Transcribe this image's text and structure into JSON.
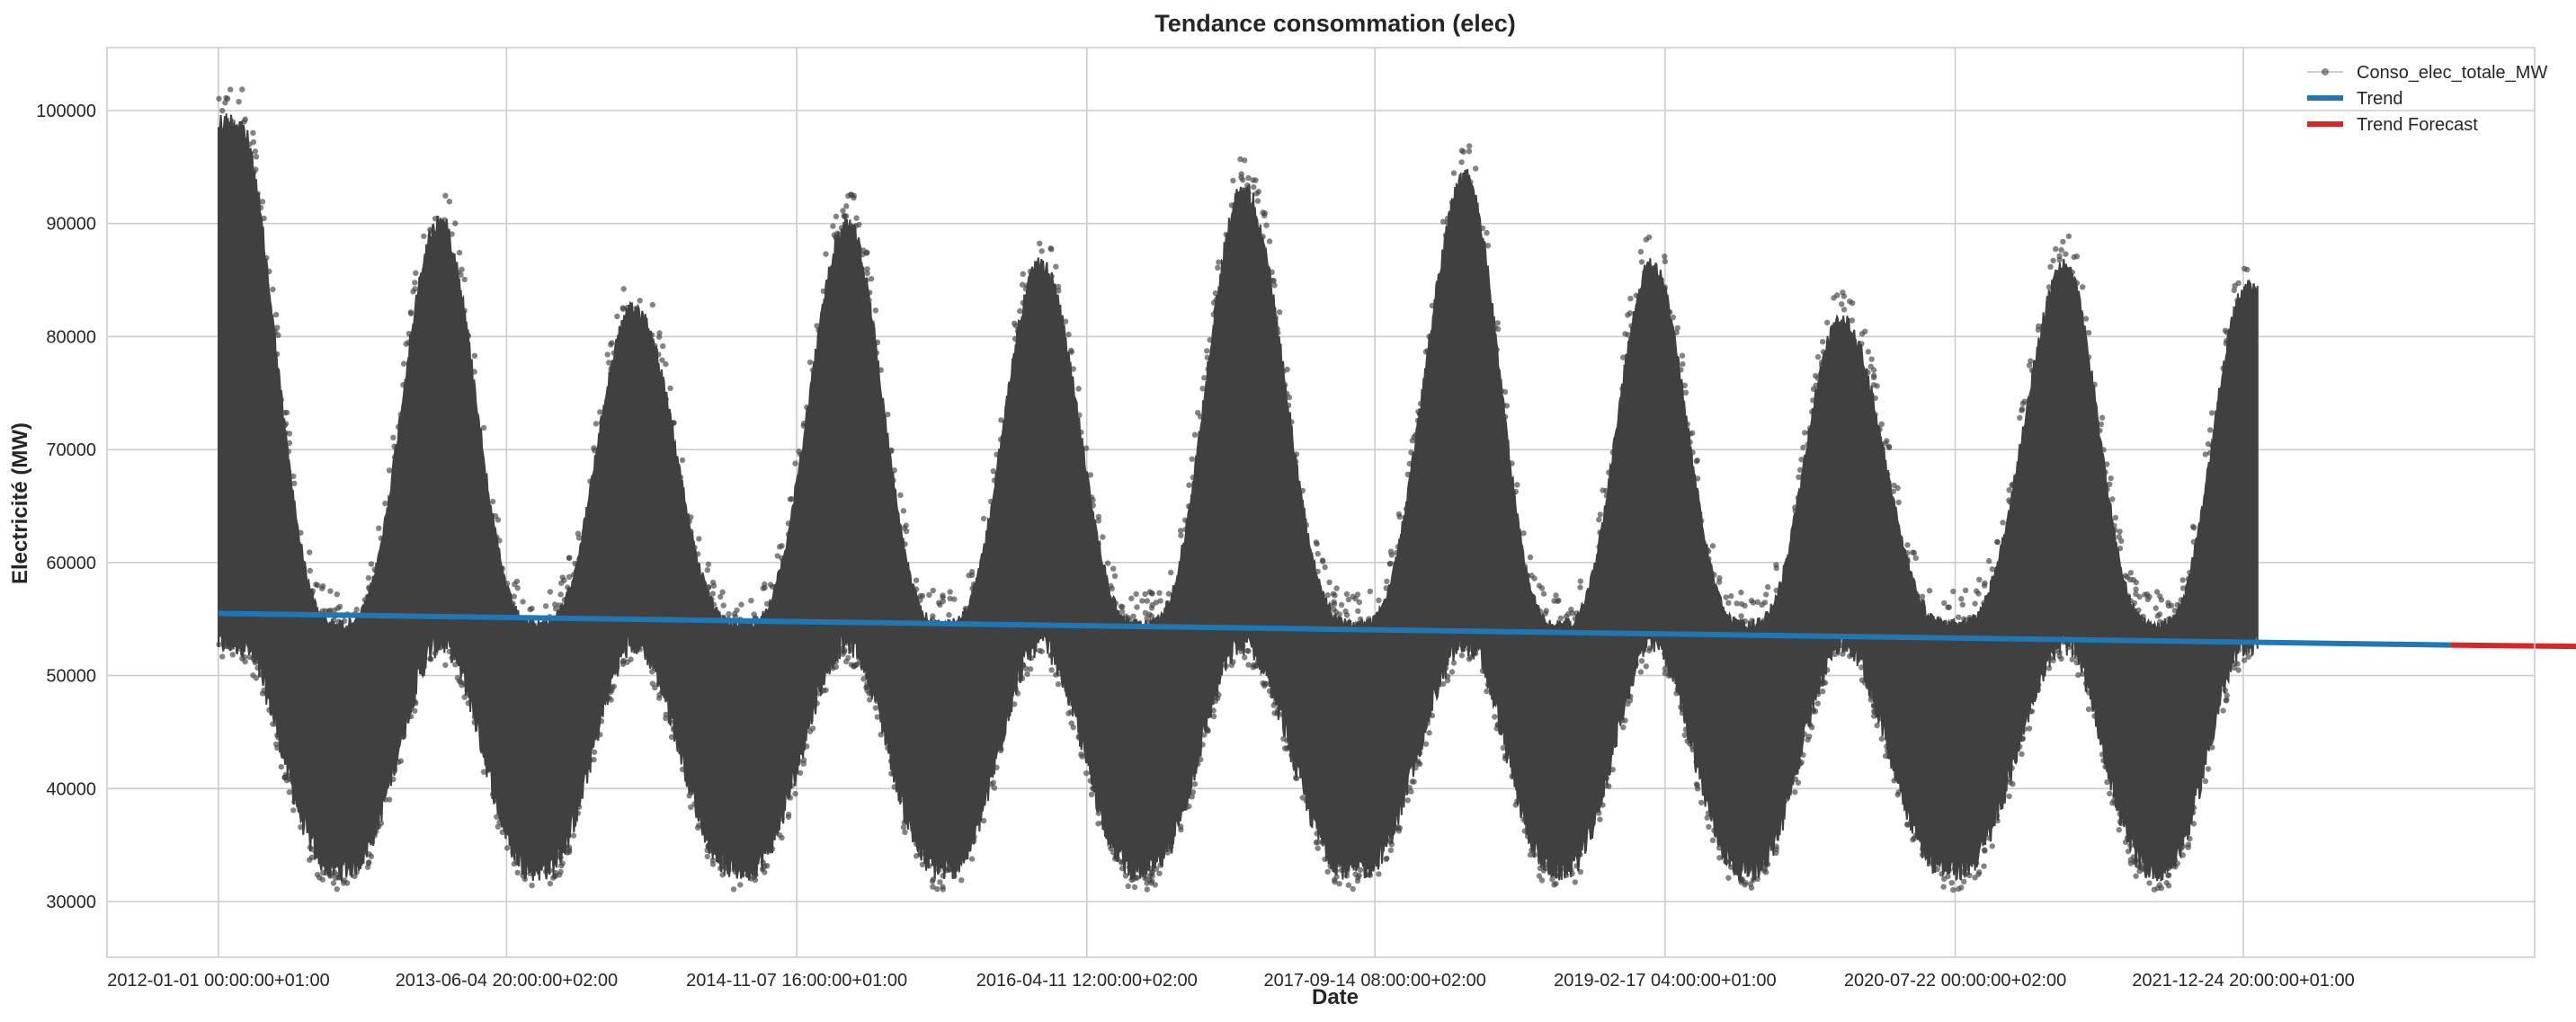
{
  "chart_data": {
    "type": "line",
    "title": "Tendance consommation (elec)",
    "xlabel": "Date",
    "ylabel": "Electricité (MW)",
    "x_range_years": [
      2012.0,
      2021.93
    ],
    "ylim": [
      25000,
      105000
    ],
    "y_ticks": [
      30000,
      40000,
      50000,
      60000,
      70000,
      80000,
      90000,
      100000
    ],
    "x_ticks": [
      {
        "label": "2012-01-01 00:00:00+01:00",
        "year": 2012.0
      },
      {
        "label": "2013-06-04 20:00:00+02:00",
        "year": 2013.42
      },
      {
        "label": "2014-11-07 16:00:00+01:00",
        "year": 2014.85
      },
      {
        "label": "2016-04-11 12:00:00+02:00",
        "year": 2016.28
      },
      {
        "label": "2017-09-14 08:00:00+02:00",
        "year": 2017.7
      },
      {
        "label": "2019-02-17 04:00:00+01:00",
        "year": 2019.13
      },
      {
        "label": "2020-07-22 00:00:00+02:00",
        "year": 2020.56
      },
      {
        "label": "2021-12-24 20:00:00+01:00",
        "year": 2021.98
      }
    ],
    "grid": true,
    "legend_position": "top-right",
    "series": [
      {
        "name": "Conso_elec_totale_MW",
        "kind": "scatter-line",
        "color": "#404040",
        "winter_peaks": [
          {
            "year": 2012.1,
            "peak": 100000
          },
          {
            "year": 2013.1,
            "peak": 91000
          },
          {
            "year": 2014.05,
            "peak": 83000
          },
          {
            "year": 2015.1,
            "peak": 91000
          },
          {
            "year": 2016.05,
            "peak": 87000
          },
          {
            "year": 2017.05,
            "peak": 94000
          },
          {
            "year": 2018.15,
            "peak": 95000
          },
          {
            "year": 2019.07,
            "peak": 87000
          },
          {
            "year": 2020.0,
            "peak": 82000
          },
          {
            "year": 2021.1,
            "peak": 87000
          },
          {
            "year": 2022.0,
            "peak": 85000
          }
        ],
        "summer_trough": 31000
      },
      {
        "name": "Trend",
        "kind": "line",
        "color": "#1f77b4",
        "x": [
          2012.0,
          2023.0
        ],
        "y": [
          55500,
          52700
        ]
      },
      {
        "name": "Trend Forecast",
        "kind": "line",
        "color": "#d62728",
        "x": [
          2023.0,
          2024.0
        ],
        "y": [
          52700,
          52500
        ]
      }
    ]
  }
}
